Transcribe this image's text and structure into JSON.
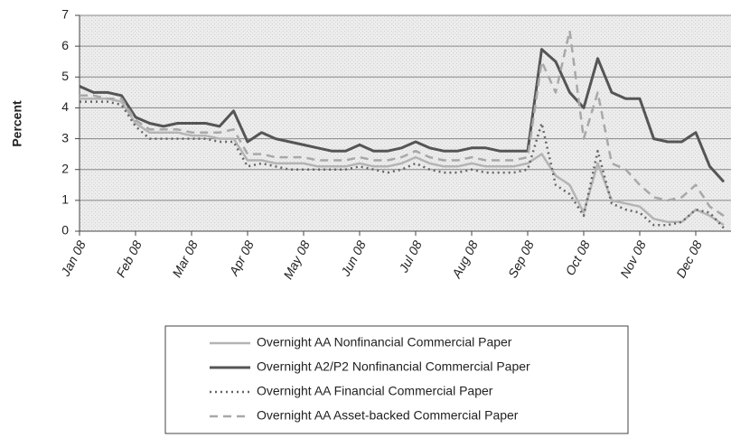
{
  "chart_data": {
    "type": "line",
    "y_label": "Percent",
    "categories": [
      "Jan 08",
      null,
      null,
      null,
      "Feb 08",
      null,
      null,
      null,
      "Mar 08",
      null,
      null,
      null,
      "Apr 08",
      null,
      null,
      null,
      "May 08",
      null,
      null,
      null,
      "Jun 08",
      null,
      null,
      null,
      "Jul 08",
      null,
      null,
      null,
      "Aug 08",
      null,
      null,
      null,
      "Sep 08",
      null,
      null,
      null,
      "Oct 08",
      null,
      null,
      null,
      "Nov 08",
      null,
      null,
      null,
      "Dec 08",
      null,
      null
    ],
    "ylim": [
      0,
      7
    ],
    "yticks": [
      0,
      1,
      2,
      3,
      4,
      5,
      6,
      7
    ],
    "grid": true,
    "series": [
      {
        "name": "Overnight AA Nonfinancial Commercial Paper",
        "color": "#b4b4b4",
        "style": "solid",
        "values": [
          4.3,
          4.3,
          4.3,
          4.2,
          3.5,
          3.2,
          3.2,
          3.2,
          3.1,
          3.1,
          3.0,
          3.0,
          2.3,
          2.3,
          2.2,
          2.2,
          2.2,
          2.1,
          2.1,
          2.1,
          2.2,
          2.1,
          2.1,
          2.2,
          2.4,
          2.2,
          2.1,
          2.1,
          2.2,
          2.1,
          2.1,
          2.1,
          2.2,
          2.5,
          1.8,
          1.5,
          0.6,
          2.2,
          1.0,
          0.9,
          0.8,
          0.4,
          0.3,
          0.3,
          0.7,
          0.5,
          0.2
        ]
      },
      {
        "name": "Overnight A2/P2 Nonfinancial Commercial Paper",
        "color": "#555555",
        "style": "solid",
        "values": [
          4.7,
          4.5,
          4.5,
          4.4,
          3.7,
          3.5,
          3.4,
          3.5,
          3.5,
          3.5,
          3.4,
          3.9,
          2.9,
          3.2,
          3.0,
          2.9,
          2.8,
          2.7,
          2.6,
          2.6,
          2.8,
          2.6,
          2.6,
          2.7,
          2.9,
          2.7,
          2.6,
          2.6,
          2.7,
          2.7,
          2.6,
          2.6,
          2.6,
          5.9,
          5.5,
          4.5,
          4.0,
          5.6,
          4.5,
          4.3,
          4.3,
          3.0,
          2.9,
          2.9,
          3.2,
          2.1,
          1.6
        ]
      },
      {
        "name": "Overnight AA Financial Commercial Paper",
        "color": "#666666",
        "style": "dotted",
        "values": [
          4.2,
          4.2,
          4.2,
          4.1,
          3.4,
          3.0,
          3.0,
          3.0,
          3.0,
          3.0,
          2.9,
          2.9,
          2.1,
          2.2,
          2.1,
          2.0,
          2.0,
          2.0,
          2.0,
          2.0,
          2.1,
          2.0,
          1.9,
          2.0,
          2.2,
          2.0,
          1.9,
          1.9,
          2.0,
          1.9,
          1.9,
          1.9,
          2.0,
          3.5,
          1.5,
          1.2,
          0.5,
          2.6,
          0.9,
          0.7,
          0.6,
          0.2,
          0.2,
          0.3,
          0.7,
          0.6,
          0.1
        ]
      },
      {
        "name": "Overnight AA Asset-backed Commercial Paper",
        "color": "#a8a8a8",
        "style": "dashed",
        "values": [
          4.4,
          4.4,
          4.3,
          4.3,
          3.6,
          3.3,
          3.3,
          3.3,
          3.2,
          3.2,
          3.2,
          3.3,
          2.5,
          2.5,
          2.4,
          2.4,
          2.4,
          2.3,
          2.3,
          2.3,
          2.4,
          2.3,
          2.3,
          2.4,
          2.6,
          2.4,
          2.3,
          2.3,
          2.4,
          2.3,
          2.3,
          2.3,
          2.4,
          5.5,
          4.5,
          6.5,
          3.0,
          4.5,
          2.2,
          2.0,
          1.5,
          1.1,
          1.0,
          1.1,
          1.5,
          0.8,
          0.5
        ]
      }
    ]
  }
}
